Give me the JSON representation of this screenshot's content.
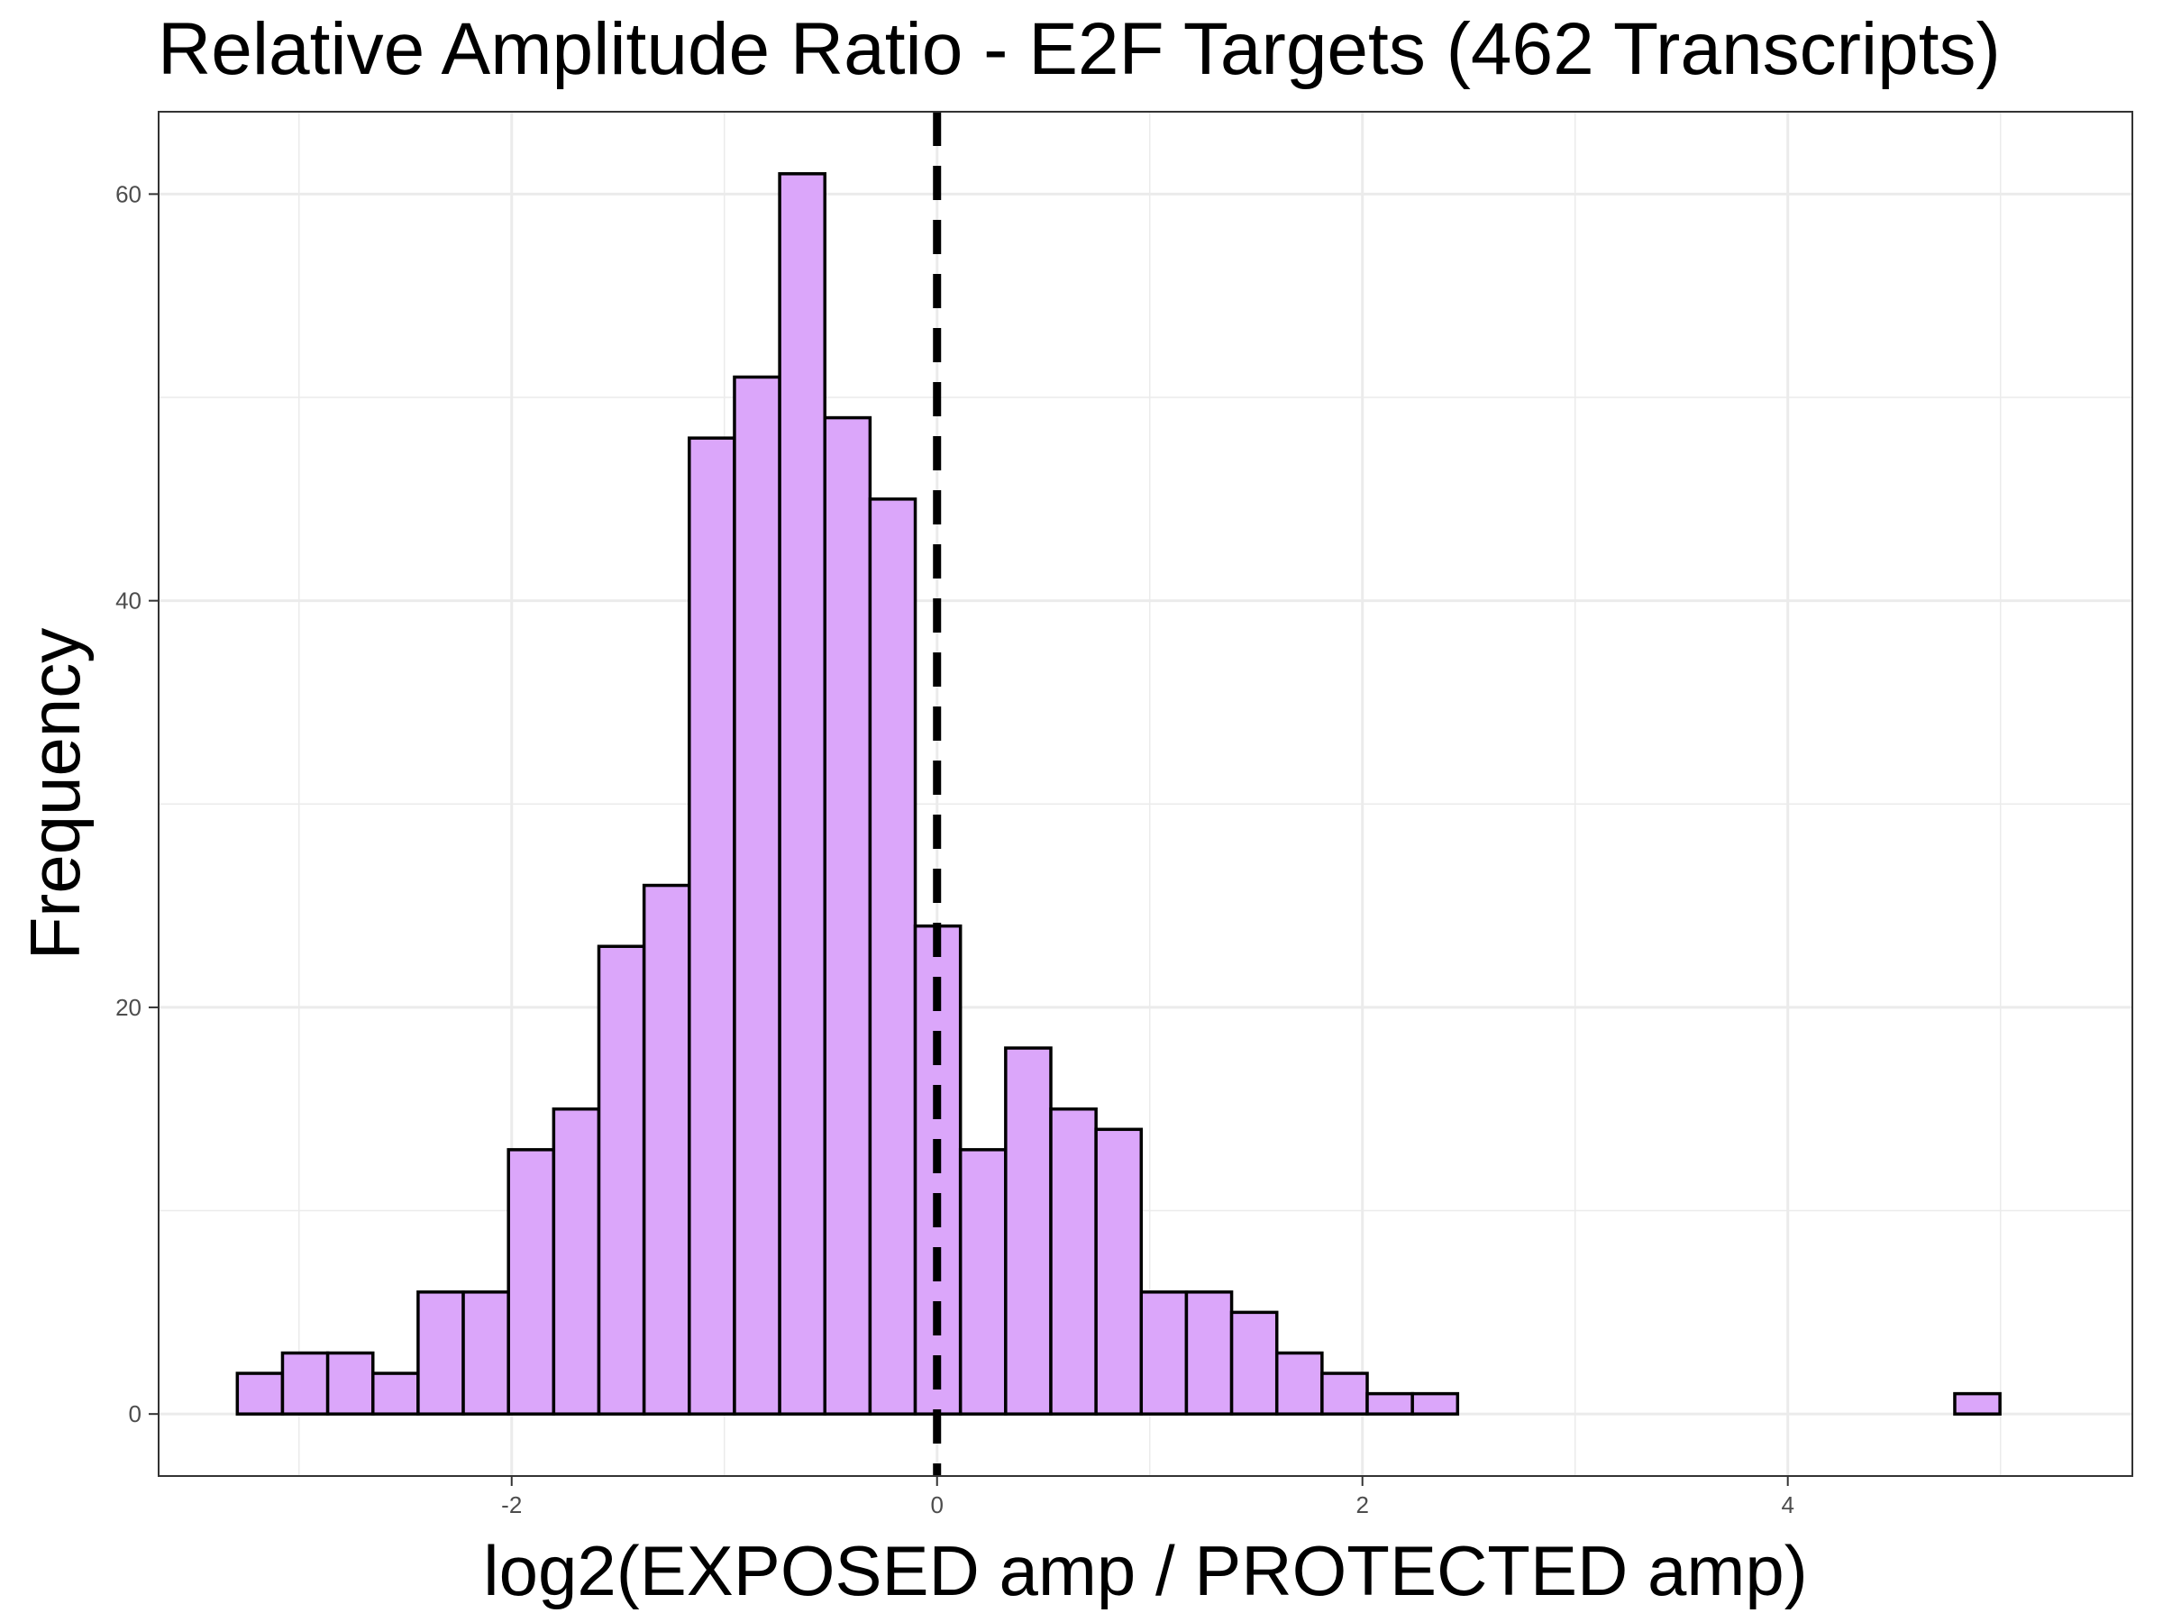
{
  "chart_data": {
    "type": "bar",
    "title": "Relative Amplitude Ratio - E2F Targets (462 Transcripts)",
    "xlabel": "log2(EXPOSED amp / PROTECTED amp)",
    "ylabel": "Frequency",
    "xlim": [
      -3.66,
      5.62
    ],
    "ylim": [
      -3.05,
      64.05
    ],
    "x_ticks": [
      -2,
      0,
      2,
      4
    ],
    "x_tick_labels": [
      "-2",
      "0",
      "2",
      "4"
    ],
    "y_ticks": [
      0,
      20,
      40,
      60
    ],
    "y_tick_labels": [
      "0",
      "20",
      "40",
      "60"
    ],
    "bin_width": 0.2125,
    "bin_start": -3.29,
    "values": [
      2,
      3,
      3,
      2,
      6,
      6,
      13,
      15,
      23,
      26,
      48,
      51,
      61,
      49,
      45,
      24,
      13,
      18,
      15,
      14,
      6,
      6,
      5,
      3,
      2,
      1,
      1,
      0,
      0,
      0,
      0,
      0,
      0,
      0,
      0,
      0,
      0,
      0,
      1
    ],
    "reference_line": {
      "x": 0,
      "style": "dashed"
    },
    "grid": true,
    "colors": {
      "bar_fill": "#DBA6FA",
      "bar_stroke": "#000000",
      "grid": "#EBEBEB",
      "panel_border": "#333333"
    }
  }
}
